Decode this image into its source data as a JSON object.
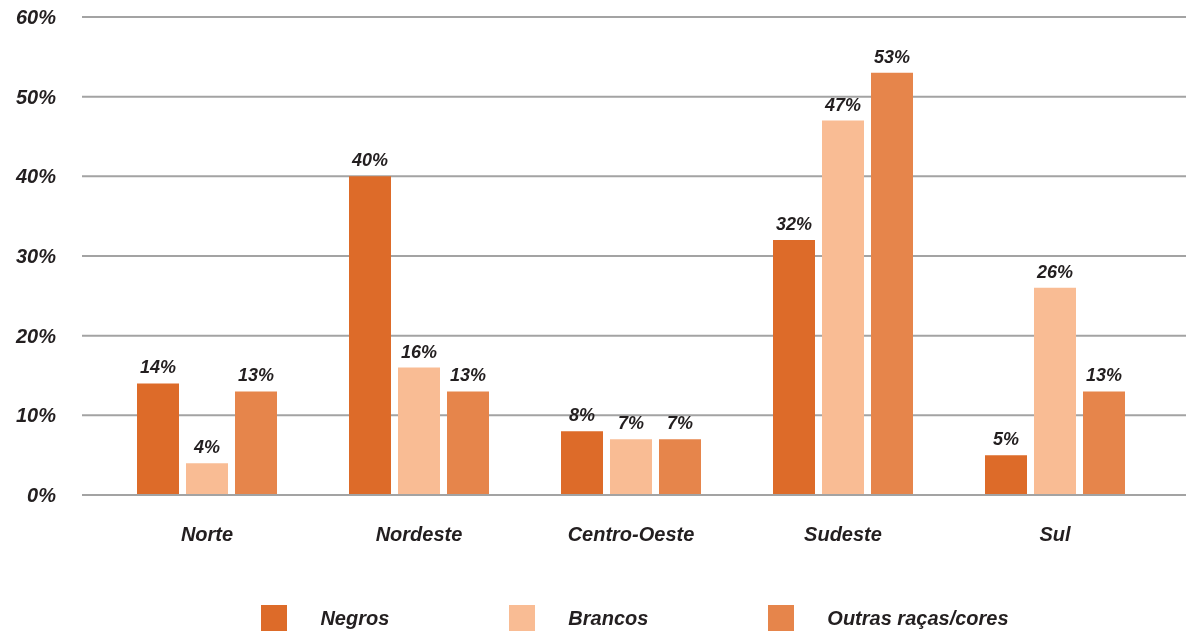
{
  "chart_data": {
    "type": "bar",
    "categories": [
      "Norte",
      "Nordeste",
      "Centro-Oeste",
      "Sudeste",
      "Sul"
    ],
    "series": [
      {
        "name": "Negros",
        "color": "#dd6b29",
        "values": [
          14,
          40,
          8,
          32,
          5
        ],
        "value_labels": [
          "14%",
          "40%",
          "8%",
          "32%",
          "5%"
        ]
      },
      {
        "name": "Brancos",
        "color": "#f9bc94",
        "values": [
          4,
          16,
          7,
          47,
          26
        ],
        "value_labels": [
          "4%",
          "16%",
          "7%",
          "47%",
          "26%"
        ]
      },
      {
        "name": "Outras raças/cores",
        "color": "#e6854b",
        "values": [
          13,
          13,
          7,
          53,
          13
        ],
        "value_labels": [
          "13%",
          "13%",
          "7%",
          "53%",
          "13%"
        ]
      }
    ],
    "ylim": [
      0,
      60
    ],
    "yticks": [
      {
        "value": 0,
        "label": "0%"
      },
      {
        "value": 10,
        "label": "10%"
      },
      {
        "value": 20,
        "label": "20%"
      },
      {
        "value": 30,
        "label": "30%"
      },
      {
        "value": 40,
        "label": "40%"
      },
      {
        "value": 50,
        "label": "50%"
      },
      {
        "value": 60,
        "label": "60%"
      }
    ],
    "grid": "y",
    "legend": "bottom"
  }
}
